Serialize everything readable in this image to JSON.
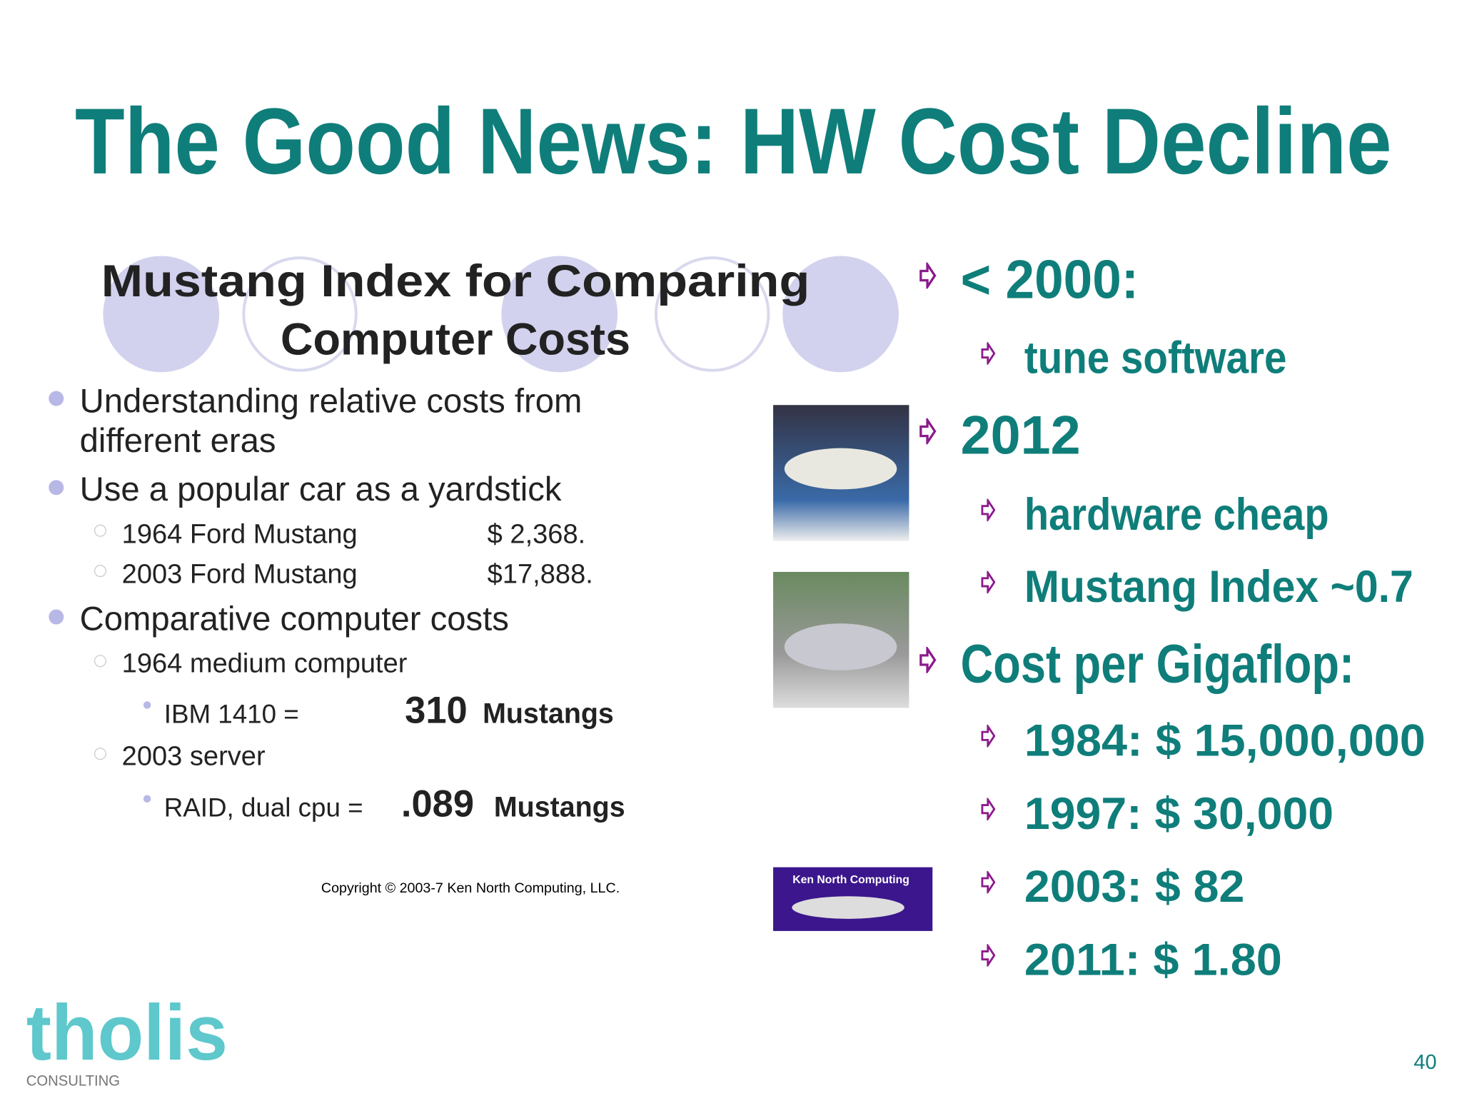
{
  "title": "The Good News: HW Cost Decline",
  "mustang_slide": {
    "heading_lines": [
      "Mustang Index for Comparing",
      "Computer Costs"
    ],
    "lines": [
      "Understanding relative costs from",
      "different eras",
      "Use a popular car as a yardstick",
      "1964 Ford Mustang",
      "2003 Ford Mustang",
      "Comparative computer costs",
      "1964 medium computer",
      "IBM 1410 =",
      "2003 server",
      "RAID, dual cpu ="
    ],
    "prices": [
      "$ 2,368.",
      "$17,888."
    ],
    "ratios": [
      {
        "amount": "310",
        "unit": "Mustangs"
      },
      {
        "amount": ".089",
        "unit": "Mustangs"
      }
    ],
    "copyright": "Copyright © 2003-7 Ken North Computing, LLC."
  },
  "ken_north_logo": "Ken North Computing",
  "bullets": [
    {
      "text": "< 2000:",
      "sub": [
        "tune software"
      ]
    },
    {
      "text": "2012",
      "sub": [
        "hardware cheap",
        "Mustang Index ~0.7"
      ]
    },
    {
      "text": "Cost per Gigaflop:",
      "sub": [
        "1984: $ 15,000,000",
        "1997: $ 30,000",
        "2003: $ 82",
        "2011: $ 1.80"
      ]
    }
  ],
  "footer": {
    "logo": "tholis",
    "logo_sub": "CONSULTING",
    "page_number": "40"
  }
}
